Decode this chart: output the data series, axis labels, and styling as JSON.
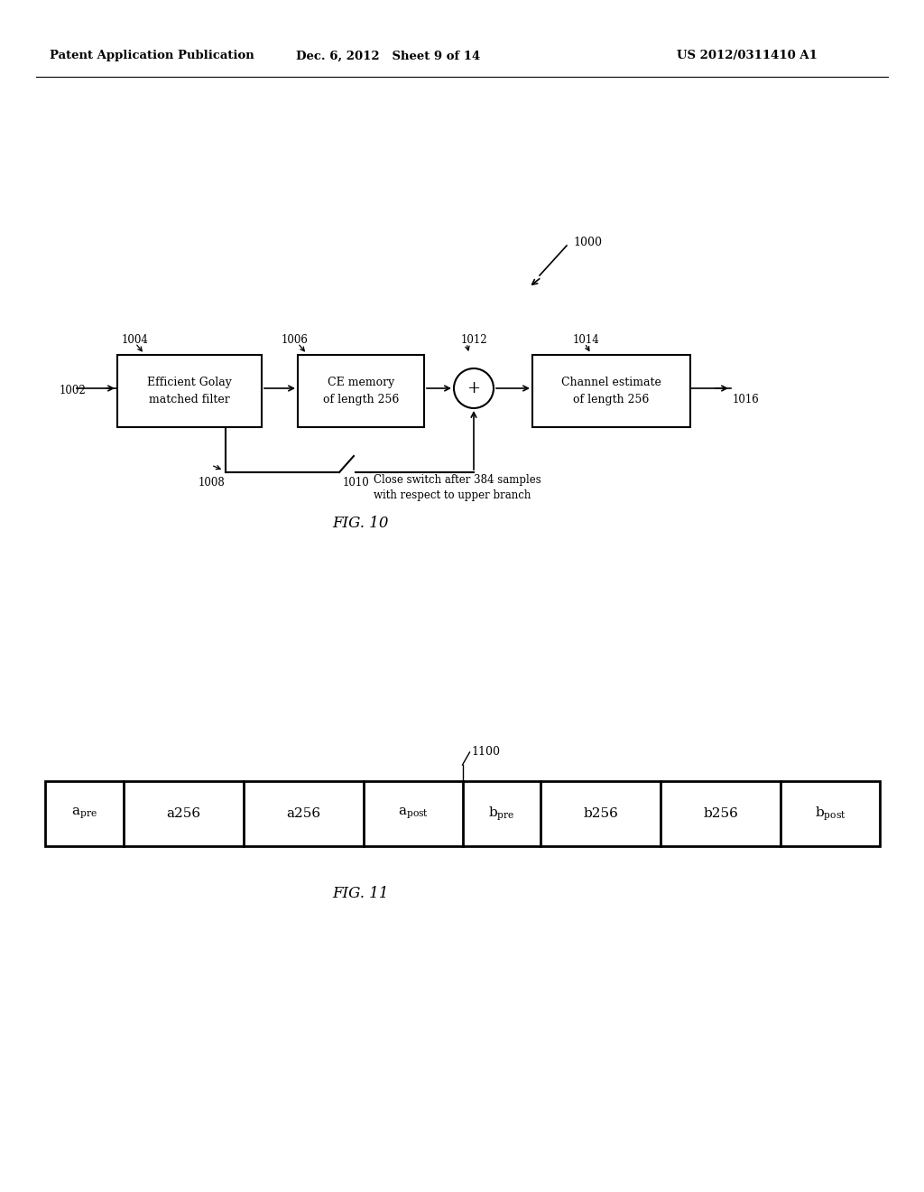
{
  "bg_color": "#ffffff",
  "header_left": "Patent Application Publication",
  "header_mid": "Dec. 6, 2012   Sheet 9 of 14",
  "header_right": "US 2012/0311410 A1",
  "fig10_label": "FIG. 10",
  "fig11_label": "FIG. 11",
  "fig10_ref": "1000",
  "box1_label": "Efficient Golay\nmatched filter",
  "box1_ref": "1004",
  "box2_label": "CE memory\nof length 256",
  "box2_ref": "1006",
  "box3_label": "Channel estimate\nof length 256",
  "box3_ref": "1014",
  "adder_ref": "1012",
  "input_ref": "1002",
  "output_ref": "1016",
  "lower_out_ref": "1008",
  "switch_ref": "1010",
  "switch_label": "Close switch after 384 samples\nwith respect to upper branch",
  "fig11_ref": "1100",
  "cell_labels_raw": [
    "a_pre",
    "a256",
    "a256",
    "a_post",
    "b_pre",
    "b256",
    "b256",
    "b_post"
  ],
  "cell_rel_widths": [
    0.75,
    1.15,
    1.15,
    0.95,
    0.75,
    1.15,
    1.15,
    0.95
  ]
}
